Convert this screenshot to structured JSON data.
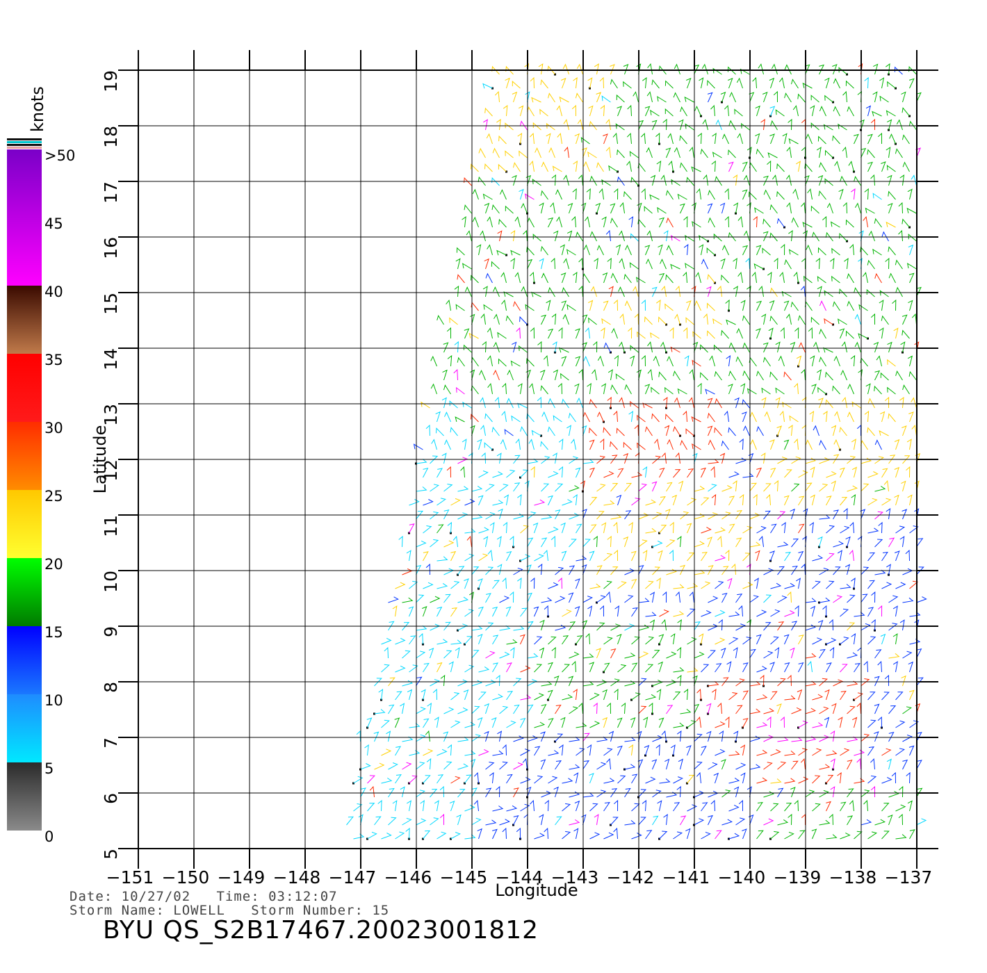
{
  "colorbar": {
    "unit": "knots",
    "bands": [
      {
        "from": 0,
        "to": 5,
        "top": "#2b2b2b",
        "bottom": "#8a8a8a"
      },
      {
        "from": 5,
        "to": 10,
        "top": "#1e8cff",
        "bottom": "#00e8ff"
      },
      {
        "from": 10,
        "to": 15,
        "top": "#0000ff",
        "bottom": "#1a78ff"
      },
      {
        "from": 15,
        "to": 20,
        "top": "#00ff00",
        "bottom": "#007a00"
      },
      {
        "from": 20,
        "to": 25,
        "top": "#ffc800",
        "bottom": "#ffff30"
      },
      {
        "from": 25,
        "to": 30,
        "top": "#ff2d00",
        "bottom": "#ff8c00"
      },
      {
        "from": 30,
        "to": 35,
        "top": "#ff0000",
        "bottom": "#ff1a1a"
      },
      {
        "from": 35,
        "to": 40,
        "top": "#3a0a00",
        "bottom": "#c07a4a"
      },
      {
        "from": 40,
        "to": 50,
        "top": "#7a00c8",
        "bottom": "#ff00ff"
      }
    ],
    "labels": [
      ">50",
      "45",
      "40",
      "35",
      "30",
      "25",
      "20",
      "15",
      "10",
      "5",
      "0"
    ],
    "label_values": [
      50,
      45,
      40,
      35,
      30,
      25,
      20,
      15,
      10,
      5,
      0
    ]
  },
  "map": {
    "lon_range": [
      -151,
      -137
    ],
    "lat_range": [
      5,
      19
    ],
    "lon_ticks": [
      -151,
      -150,
      -149,
      -148,
      -147,
      -146,
      -145,
      -144,
      -143,
      -142,
      -141,
      -140,
      -139,
      -138,
      -137
    ],
    "lon_tick_labels": [
      "−151",
      "−150",
      "−149",
      "−148",
      "−147",
      "−146",
      "−145",
      "−144",
      "−143",
      "−142",
      "−141",
      "−140",
      "−139",
      "−138",
      "−137"
    ],
    "lat_ticks": [
      5,
      6,
      7,
      8,
      9,
      10,
      11,
      12,
      13,
      14,
      15,
      16,
      17,
      18,
      19
    ],
    "lat_tick_labels": [
      "5",
      "6",
      "7",
      "8",
      "9",
      "10",
      "11",
      "12",
      "13",
      "14",
      "15",
      "16",
      "17",
      "18",
      "19"
    ],
    "xlabel": "Longitude",
    "ylabel": "Latitude",
    "swath_polygon": [
      [
        -144.6,
        19
      ],
      [
        -137,
        19
      ],
      [
        -137,
        5
      ],
      [
        -147.4,
        5
      ]
    ],
    "wind_barb_colors": {
      "calm": "#000000",
      "light": "#00d8ff",
      "moderate": "#0033ff",
      "fresh": "#00b400",
      "strong": "#ffd000",
      "gale": "#ff2a00",
      "storm": "#ff00ff"
    },
    "wind_regions": [
      {
        "lon": [
          -145,
          -137
        ],
        "lat": [
          17,
          19
        ],
        "speed": "fresh"
      },
      {
        "lon": [
          -145.4,
          -142.5
        ],
        "lat": [
          14.5,
          19
        ],
        "speed": "strong"
      },
      {
        "lon": [
          -145.8,
          -137
        ],
        "lat": [
          13,
          17
        ],
        "speed": "fresh"
      },
      {
        "lon": [
          -143,
          -140.5
        ],
        "lat": [
          14,
          15
        ],
        "speed": "strong"
      },
      {
        "lon": [
          -143,
          -140.5
        ],
        "lat": [
          11.5,
          13
        ],
        "speed": "gale"
      },
      {
        "lon": [
          -140,
          -137
        ],
        "lat": [
          11,
          13
        ],
        "speed": "strong"
      },
      {
        "lon": [
          -146.8,
          -143
        ],
        "lat": [
          10,
          13
        ],
        "speed": "light"
      },
      {
        "lon": [
          -143,
          -140
        ],
        "lat": [
          9.5,
          11.5
        ],
        "speed": "strong"
      },
      {
        "lon": [
          -140,
          -137
        ],
        "lat": [
          9,
          11
        ],
        "speed": "moderate"
      },
      {
        "lon": [
          -147.3,
          -144
        ],
        "lat": [
          5,
          10
        ],
        "speed": "light"
      },
      {
        "lon": [
          -144,
          -141
        ],
        "lat": [
          7,
          9
        ],
        "speed": "fresh"
      },
      {
        "lon": [
          -141,
          -138
        ],
        "lat": [
          6,
          8
        ],
        "speed": "gale"
      },
      {
        "lon": [
          -140,
          -138.5
        ],
        "lat": [
          6.8,
          7.4
        ],
        "speed": "storm"
      },
      {
        "lon": [
          -145,
          -140
        ],
        "lat": [
          5,
          7
        ],
        "speed": "moderate"
      },
      {
        "lon": [
          -140,
          -137
        ],
        "lat": [
          5,
          6
        ],
        "speed": "fresh"
      }
    ]
  },
  "info": {
    "date_line": "Date: 10/27/02   Time: 03:12:07",
    "storm_line": "Storm Name: LOWELL   Storm Number: 15",
    "file_id": "BYU QS_S2B17467.20023001812"
  }
}
